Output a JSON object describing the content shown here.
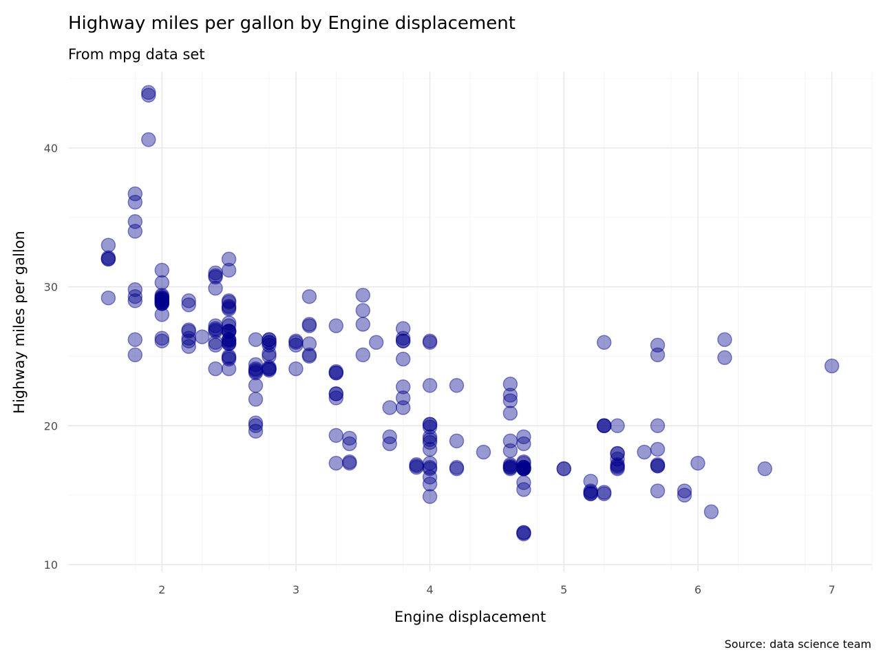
{
  "chart_data": {
    "type": "scatter",
    "title": "Highway miles per gallon by Engine displacement",
    "subtitle": "From mpg data set",
    "xlabel": "Engine displacement",
    "ylabel": "Highway miles per gallon",
    "caption": "Source: data science team",
    "xlim": [
      1.3,
      7.3
    ],
    "ylim": [
      9.5,
      45.5
    ],
    "x_ticks": [
      2,
      3,
      4,
      5,
      6,
      7
    ],
    "y_ticks": [
      10,
      20,
      30,
      40
    ],
    "grid": true,
    "point_color": "#00008b",
    "point_fill_opacity": 0.4,
    "points": [
      [
        1.8,
        29.0
      ],
      [
        1.8,
        29.3
      ],
      [
        2.0,
        31.2
      ],
      [
        2.0,
        30.3
      ],
      [
        2.8,
        26.0
      ],
      [
        2.8,
        26.2
      ],
      [
        3.1,
        27.2
      ],
      [
        1.8,
        26.2
      ],
      [
        1.8,
        25.1
      ],
      [
        2.0,
        28.0
      ],
      [
        2.0,
        28.8
      ],
      [
        2.8,
        25.8
      ],
      [
        2.8,
        25.2
      ],
      [
        3.1,
        25.1
      ],
      [
        3.1,
        25.9
      ],
      [
        2.8,
        24.0
      ],
      [
        3.1,
        25.0
      ],
      [
        4.2,
        22.9
      ],
      [
        5.3,
        20.0
      ],
      [
        5.3,
        15.1
      ],
      [
        5.3,
        20.0
      ],
      [
        5.7,
        17.1
      ],
      [
        6.0,
        17.3
      ],
      [
        5.7,
        25.8
      ],
      [
        5.7,
        25.1
      ],
      [
        6.2,
        26.2
      ],
      [
        6.2,
        24.9
      ],
      [
        7.0,
        24.3
      ],
      [
        5.3,
        20.0
      ],
      [
        5.3,
        15.2
      ],
      [
        5.7,
        20.0
      ],
      [
        6.5,
        16.9
      ],
      [
        2.4,
        31.0
      ],
      [
        2.4,
        30.8
      ],
      [
        3.1,
        29.3
      ],
      [
        3.5,
        29.4
      ],
      [
        3.6,
        26.0
      ],
      [
        2.4,
        24.1
      ],
      [
        3.0,
        24.1
      ],
      [
        3.3,
        23.9
      ],
      [
        3.3,
        22.0
      ],
      [
        3.3,
        23.8
      ],
      [
        3.3,
        22.3
      ],
      [
        3.3,
        23.8
      ],
      [
        3.8,
        22.8
      ],
      [
        3.8,
        21.3
      ],
      [
        3.8,
        22.0
      ],
      [
        4.0,
        22.9
      ],
      [
        3.7,
        19.2
      ],
      [
        3.7,
        18.7
      ],
      [
        3.9,
        17.2
      ],
      [
        3.9,
        17.0
      ],
      [
        4.7,
        16.9
      ],
      [
        4.7,
        17.3
      ],
      [
        4.7,
        17.0
      ],
      [
        5.2,
        16.0
      ],
      [
        5.2,
        15.1
      ],
      [
        3.9,
        17.1
      ],
      [
        4.7,
        12.3
      ],
      [
        4.7,
        17.4
      ],
      [
        4.7,
        16.9
      ],
      [
        5.2,
        15.1
      ],
      [
        5.7,
        17.2
      ],
      [
        5.9,
        15.0
      ],
      [
        4.7,
        16.9
      ],
      [
        4.7,
        12.2
      ],
      [
        4.7,
        17.0
      ],
      [
        4.7,
        16.9
      ],
      [
        4.7,
        17.0
      ],
      [
        4.7,
        12.3
      ],
      [
        5.2,
        15.3
      ],
      [
        5.2,
        15.2
      ],
      [
        5.7,
        17.1
      ],
      [
        5.9,
        15.3
      ],
      [
        4.6,
        16.9
      ],
      [
        5.4,
        17.2
      ],
      [
        5.4,
        17.0
      ],
      [
        4.0,
        16.9
      ],
      [
        4.0,
        19.9
      ],
      [
        4.0,
        20.1
      ],
      [
        4.0,
        17.0
      ],
      [
        4.6,
        18.9
      ],
      [
        5.0,
        16.9
      ],
      [
        4.2,
        17.0
      ],
      [
        4.2,
        16.9
      ],
      [
        4.6,
        17.2
      ],
      [
        4.6,
        17.0
      ],
      [
        4.6,
        17.1
      ],
      [
        5.4,
        17.1
      ],
      [
        5.4,
        20.0
      ],
      [
        3.8,
        26.1
      ],
      [
        3.8,
        24.8
      ],
      [
        4.0,
        26.0
      ],
      [
        4.0,
        26.1
      ],
      [
        4.6,
        23.0
      ],
      [
        4.6,
        22.2
      ],
      [
        4.6,
        21.8
      ],
      [
        4.6,
        20.9
      ],
      [
        5.4,
        18.0
      ],
      [
        1.6,
        33.0
      ],
      [
        1.6,
        32.1
      ],
      [
        1.6,
        32.0
      ],
      [
        1.6,
        29.2
      ],
      [
        1.6,
        32.0
      ],
      [
        1.8,
        34.0
      ],
      [
        1.8,
        36.7
      ],
      [
        1.8,
        36.1
      ],
      [
        2.0,
        29.1
      ],
      [
        2.4,
        26.8
      ],
      [
        2.4,
        27.2
      ],
      [
        2.4,
        26.9
      ],
      [
        2.4,
        26.0
      ],
      [
        2.5,
        26.2
      ],
      [
        2.5,
        26.8
      ],
      [
        3.3,
        27.2
      ],
      [
        2.0,
        29.0
      ],
      [
        2.0,
        29.3
      ],
      [
        2.0,
        28.8
      ],
      [
        2.0,
        29.2
      ],
      [
        2.7,
        24.4
      ],
      [
        2.7,
        24.1
      ],
      [
        2.7,
        24.0
      ],
      [
        3.0,
        25.8
      ],
      [
        3.7,
        21.3
      ],
      [
        4.0,
        17.3
      ],
      [
        4.7,
        19.2
      ],
      [
        4.7,
        18.7
      ],
      [
        4.7,
        17.0
      ],
      [
        5.7,
        18.3
      ],
      [
        6.1,
        13.8
      ],
      [
        4.0,
        19.0
      ],
      [
        4.2,
        18.9
      ],
      [
        4.4,
        18.1
      ],
      [
        4.6,
        17.0
      ],
      [
        5.4,
        17.6
      ],
      [
        5.4,
        18.0
      ],
      [
        5.4,
        16.9
      ],
      [
        4.0,
        18.3
      ],
      [
        4.0,
        18.8
      ],
      [
        4.6,
        18.2
      ],
      [
        5.0,
        16.9
      ],
      [
        2.4,
        30.7
      ],
      [
        2.4,
        29.9
      ],
      [
        2.5,
        31.2
      ],
      [
        2.5,
        32.0
      ],
      [
        3.5,
        28.3
      ],
      [
        3.5,
        27.3
      ],
      [
        3.0,
        26.1
      ],
      [
        3.0,
        26.0
      ],
      [
        3.5,
        25.1
      ],
      [
        3.3,
        19.3
      ],
      [
        3.3,
        17.3
      ],
      [
        4.0,
        20.1
      ],
      [
        5.6,
        18.1
      ],
      [
        3.1,
        27.3
      ],
      [
        3.8,
        27.0
      ],
      [
        3.8,
        26.3
      ],
      [
        3.8,
        26.1
      ],
      [
        5.3,
        26.0
      ],
      [
        2.5,
        26.8
      ],
      [
        2.5,
        27.2
      ],
      [
        2.5,
        26.1
      ],
      [
        2.5,
        24.8
      ],
      [
        2.5,
        25.9
      ],
      [
        2.5,
        26.0
      ],
      [
        2.2,
        26.9
      ],
      [
        2.2,
        26.8
      ],
      [
        2.5,
        24.1
      ],
      [
        2.5,
        26.2
      ],
      [
        2.5,
        25.9
      ],
      [
        2.5,
        24.9
      ],
      [
        2.5,
        25.0
      ],
      [
        2.5,
        26.8
      ],
      [
        2.7,
        22.9
      ],
      [
        2.5,
        26.8
      ],
      [
        2.5,
        28.4
      ],
      [
        2.5,
        28.9
      ],
      [
        2.7,
        26.2
      ],
      [
        1.8,
        29.8
      ],
      [
        1.8,
        34.7
      ],
      [
        2.0,
        26.3
      ],
      [
        2.0,
        26.1
      ],
      [
        2.8,
        26.2
      ],
      [
        1.9,
        44.0
      ],
      [
        2.0,
        29.0
      ],
      [
        2.0,
        29.1
      ],
      [
        2.0,
        28.9
      ],
      [
        2.8,
        24.1
      ],
      [
        1.9,
        43.8
      ],
      [
        2.0,
        29.2
      ],
      [
        2.0,
        29.4
      ],
      [
        2.5,
        28.5
      ],
      [
        2.5,
        29.0
      ],
      [
        2.8,
        24.2
      ],
      [
        2.8,
        24.1
      ],
      [
        1.9,
        40.6
      ],
      [
        2.0,
        28.8
      ],
      [
        2.0,
        29.1
      ],
      [
        2.0,
        28.9
      ],
      [
        2.7,
        20.2
      ],
      [
        2.7,
        20.0
      ],
      [
        2.7,
        19.6
      ],
      [
        3.4,
        17.4
      ],
      [
        3.4,
        17.3
      ],
      [
        4.0,
        14.9
      ],
      [
        4.0,
        19.2
      ],
      [
        2.7,
        23.9
      ],
      [
        2.7,
        21.9
      ],
      [
        2.7,
        23.8
      ],
      [
        3.4,
        19.1
      ],
      [
        3.4,
        18.7
      ],
      [
        4.0,
        15.8
      ],
      [
        4.0,
        16.3
      ],
      [
        4.7,
        15.9
      ],
      [
        4.7,
        15.4
      ],
      [
        5.7,
        15.3
      ],
      [
        2.5,
        28.6
      ],
      [
        2.2,
        29.0
      ],
      [
        2.2,
        28.7
      ],
      [
        2.5,
        27.4
      ],
      [
        2.3,
        26.4
      ],
      [
        2.4,
        25.8
      ],
      [
        2.4,
        27.0
      ],
      [
        3.3,
        22.3
      ],
      [
        2.2,
        25.7
      ],
      [
        2.2,
        26.3
      ],
      [
        2.2,
        26.1
      ],
      [
        2.8,
        26.0
      ],
      [
        2.8,
        25.0
      ]
    ]
  }
}
